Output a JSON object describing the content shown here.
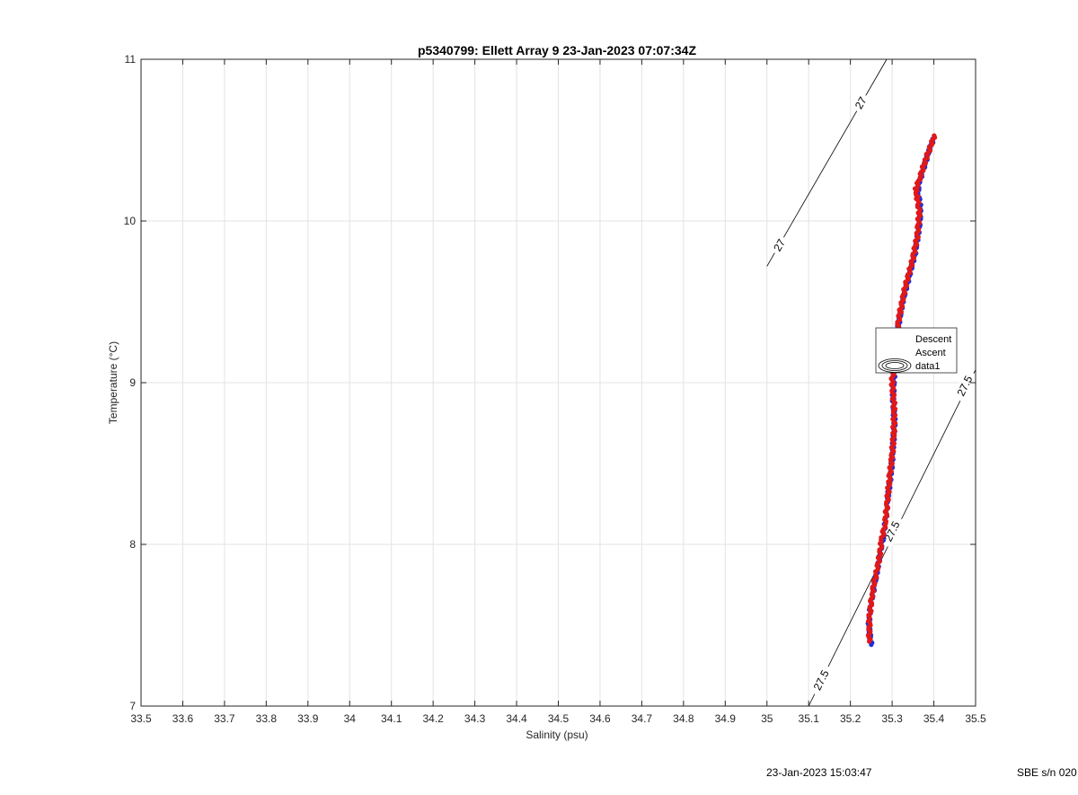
{
  "chart_data": {
    "type": "scatter",
    "title": "p5340799: Ellett Array 9 23-Jan-2023 07:07:34Z",
    "xlabel": "Salinity (psu)",
    "ylabel": "Temperature (°C)",
    "xlim": [
      33.5,
      35.5
    ],
    "ylim": [
      7,
      11
    ],
    "xticks": [
      "33.5",
      "33.6",
      "33.7",
      "33.8",
      "33.9",
      "34",
      "34.1",
      "34.2",
      "34.3",
      "34.4",
      "34.5",
      "34.6",
      "34.7",
      "34.8",
      "34.9",
      "35",
      "35.1",
      "35.2",
      "35.3",
      "35.4",
      "35.5"
    ],
    "yticks": [
      "7",
      "8",
      "9",
      "10",
      "11"
    ],
    "grid": true,
    "legend": {
      "placement": "inside-right",
      "entries": [
        "Descent",
        "Ascent",
        "data1"
      ]
    },
    "colors": {
      "descent": "#1f2ddb",
      "ascent": "#e01818",
      "contour": "#000000",
      "grid": "#e3e3e3"
    },
    "contours": [
      {
        "label": "27",
        "points": [
          [
            35.0,
            9.72
          ],
          [
            35.287,
            11.0
          ]
        ],
        "label_positions": [
          [
            35.03,
            9.85
          ],
          [
            35.225,
            10.73
          ]
        ]
      },
      {
        "label": "27.5",
        "points": [
          [
            35.1,
            7.0
          ],
          [
            35.5,
            9.08
          ]
        ],
        "label_positions": [
          [
            35.13,
            7.16
          ],
          [
            35.3,
            8.08
          ],
          [
            35.474,
            8.98
          ]
        ]
      }
    ],
    "series": [
      {
        "name": "Descent",
        "profile": [
          [
            35.25,
            7.38
          ],
          [
            35.244,
            7.5
          ],
          [
            35.248,
            7.62
          ],
          [
            35.258,
            7.75
          ],
          [
            35.265,
            7.85
          ],
          [
            35.272,
            7.95
          ],
          [
            35.278,
            8.05
          ],
          [
            35.285,
            8.15
          ],
          [
            35.29,
            8.3
          ],
          [
            35.298,
            8.45
          ],
          [
            35.302,
            8.6
          ],
          [
            35.306,
            8.75
          ],
          [
            35.302,
            8.9
          ],
          [
            35.305,
            9.05
          ],
          [
            35.307,
            9.2
          ],
          [
            35.315,
            9.35
          ],
          [
            35.325,
            9.5
          ],
          [
            35.34,
            9.65
          ],
          [
            35.355,
            9.8
          ],
          [
            35.367,
            10.0
          ],
          [
            35.367,
            10.1
          ],
          [
            35.362,
            10.18
          ],
          [
            35.365,
            10.24
          ],
          [
            35.375,
            10.32
          ],
          [
            35.39,
            10.45
          ],
          [
            35.403,
            10.53
          ]
        ]
      },
      {
        "name": "Ascent",
        "profile": [
          [
            35.245,
            7.4
          ],
          [
            35.246,
            7.55
          ],
          [
            35.252,
            7.7
          ],
          [
            35.262,
            7.82
          ],
          [
            35.27,
            7.93
          ],
          [
            35.275,
            8.03
          ],
          [
            35.283,
            8.13
          ],
          [
            35.288,
            8.25
          ],
          [
            35.293,
            8.4
          ],
          [
            35.3,
            8.55
          ],
          [
            35.304,
            8.7
          ],
          [
            35.305,
            8.85
          ],
          [
            35.3,
            9.0
          ],
          [
            35.304,
            9.15
          ],
          [
            35.31,
            9.3
          ],
          [
            35.32,
            9.45
          ],
          [
            35.332,
            9.6
          ],
          [
            35.348,
            9.75
          ],
          [
            35.36,
            9.9
          ],
          [
            35.365,
            10.05
          ],
          [
            35.36,
            10.15
          ],
          [
            35.357,
            10.2
          ],
          [
            35.368,
            10.28
          ],
          [
            35.38,
            10.38
          ],
          [
            35.395,
            10.48
          ],
          [
            35.402,
            10.54
          ]
        ]
      }
    ]
  },
  "footer": {
    "timestamp": "23-Jan-2023 15:03:47",
    "serial": "SBE s/n 020"
  }
}
